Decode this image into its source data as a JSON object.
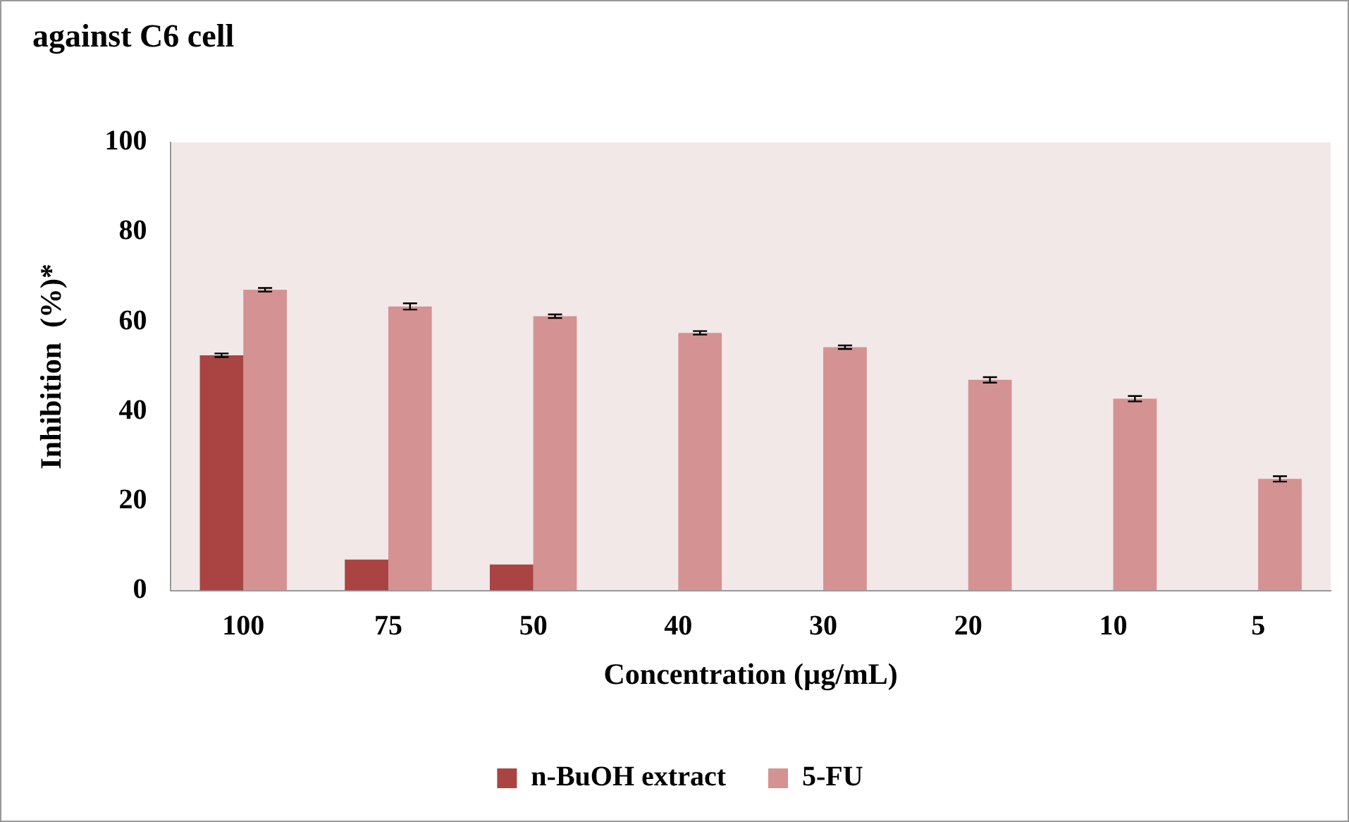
{
  "chart_data": {
    "type": "bar",
    "title": "against C6 cell",
    "xlabel": "Concentration (µg/mL)",
    "ylabel": "Inhibition  (%)*",
    "categories": [
      "100",
      "75",
      "50",
      "40",
      "30",
      "20",
      "10",
      "5"
    ],
    "series": [
      {
        "name": "n-BuOH extract",
        "color": "#a94442",
        "values": [
          52.5,
          6.9,
          5.8,
          null,
          null,
          null,
          null,
          null
        ],
        "errors": [
          0.4,
          null,
          null,
          null,
          null,
          null,
          null,
          null
        ]
      },
      {
        "name": "5-FU",
        "color": "#d49292",
        "values": [
          67.1,
          63.4,
          61.2,
          57.5,
          54.3,
          47.0,
          42.8,
          24.9
        ],
        "errors": [
          0.4,
          0.7,
          0.4,
          0.4,
          0.4,
          0.6,
          0.6,
          0.6
        ]
      }
    ],
    "ylim": [
      0,
      100
    ],
    "yticks": [
      0,
      20,
      40,
      60,
      80,
      100
    ],
    "grid": false,
    "legend": "bottom"
  }
}
